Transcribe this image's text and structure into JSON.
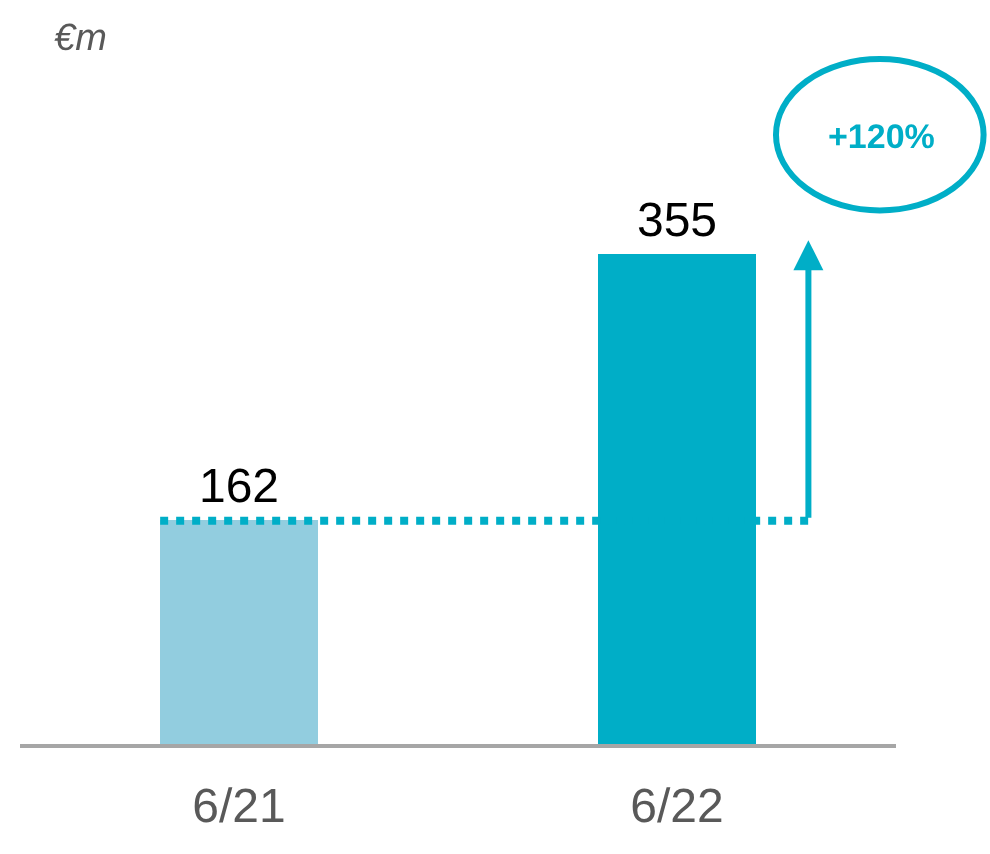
{
  "chart_data": {
    "type": "bar",
    "categories": [
      "6/21",
      "6/22"
    ],
    "values": [
      162,
      355
    ],
    "colors": [
      "#92cddf",
      "#00aec7"
    ],
    "data_labels": true,
    "ref_lines": [
      {
        "axis": "y",
        "value": 162,
        "color": "#00aec7",
        "line_style": "dotted"
      }
    ],
    "annotations": [
      "€m",
      "+120%"
    ]
  }
}
